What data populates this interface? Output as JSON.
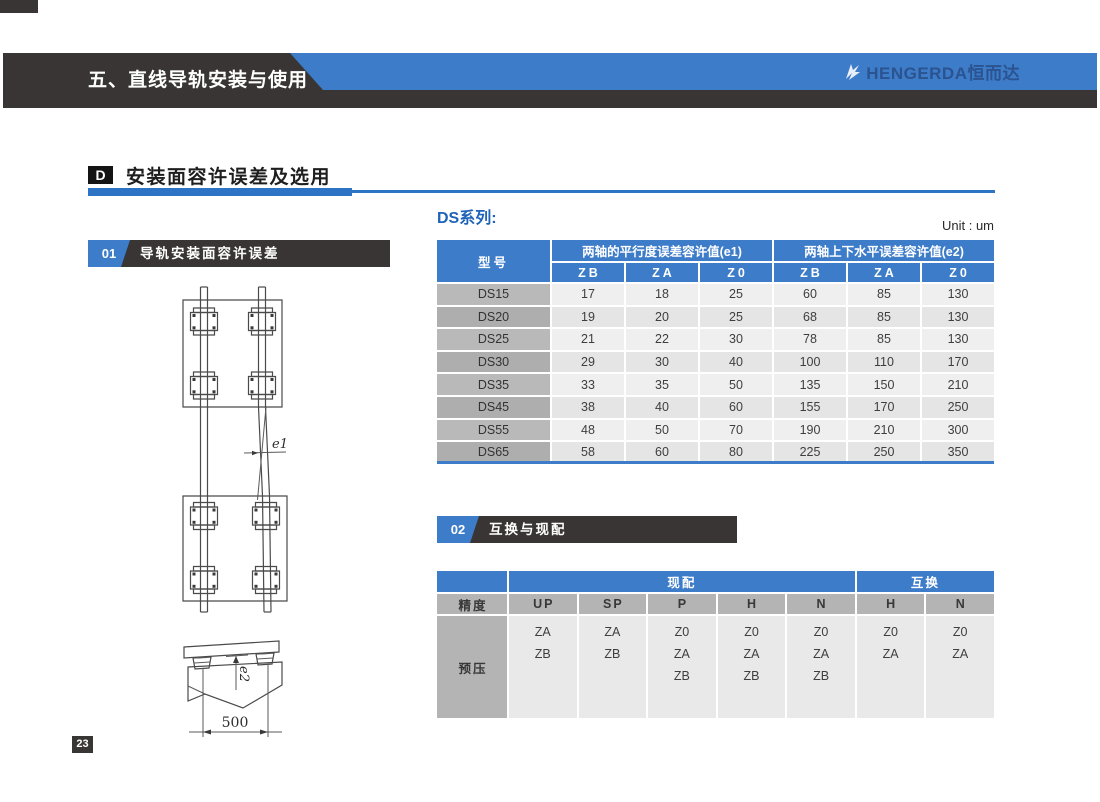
{
  "colors": {
    "accent_blue": "#3d7cc8",
    "charcoal": "#393534",
    "underline_blue": "#2e74c4"
  },
  "header": {
    "chapter_title": "五、直线导轨安装与使用",
    "logo_text": "HENGERDA恒而达"
  },
  "section": {
    "badge": "D",
    "title": "安装面容许误差及选用"
  },
  "sub1": {
    "number": "01",
    "title": "导轨安装面容许误差"
  },
  "sub2": {
    "number": "02",
    "title": "互换与现配"
  },
  "series_label": "DS系列:",
  "unit_label": "Unit : um",
  "diagram": {
    "e1": "e1",
    "e2": "e2",
    "dim_500": "500"
  },
  "table1": {
    "col_model": "型号",
    "group_e1": "两轴的平行度误差容许值(e1)",
    "group_e2": "两轴上下水平误差容许值(e2)",
    "subcols": [
      "ZB",
      "ZA",
      "Z0",
      "ZB",
      "ZA",
      "Z0"
    ],
    "rows": [
      {
        "model": "DS15",
        "values": [
          "17",
          "18",
          "25",
          "60",
          "85",
          "130"
        ]
      },
      {
        "model": "DS20",
        "values": [
          "19",
          "20",
          "25",
          "68",
          "85",
          "130"
        ]
      },
      {
        "model": "DS25",
        "values": [
          "21",
          "22",
          "30",
          "78",
          "85",
          "130"
        ]
      },
      {
        "model": "DS30",
        "values": [
          "29",
          "30",
          "40",
          "100",
          "110",
          "170"
        ]
      },
      {
        "model": "DS35",
        "values": [
          "33",
          "35",
          "50",
          "135",
          "150",
          "210"
        ]
      },
      {
        "model": "DS45",
        "values": [
          "38",
          "40",
          "60",
          "155",
          "170",
          "250"
        ]
      },
      {
        "model": "DS55",
        "values": [
          "48",
          "50",
          "70",
          "190",
          "210",
          "300"
        ]
      },
      {
        "model": "DS65",
        "values": [
          "58",
          "60",
          "80",
          "225",
          "250",
          "350"
        ]
      }
    ]
  },
  "table2": {
    "col_precision": "精度",
    "col_preload": "预压",
    "group_xianpei": "现配",
    "group_huhuan": "互换",
    "precision_cols": [
      "UP",
      "SP",
      "P",
      "H",
      "N",
      "H",
      "N"
    ],
    "preload_values": [
      [
        "ZA",
        "ZB"
      ],
      [
        "ZA",
        "ZB"
      ],
      [
        "Z0",
        "ZA",
        "ZB"
      ],
      [
        "Z0",
        "ZA",
        "ZB"
      ],
      [
        "Z0",
        "ZA",
        "ZB"
      ],
      [
        "Z0",
        "ZA"
      ],
      [
        "Z0",
        "ZA"
      ]
    ]
  },
  "page": {
    "number": "23"
  }
}
